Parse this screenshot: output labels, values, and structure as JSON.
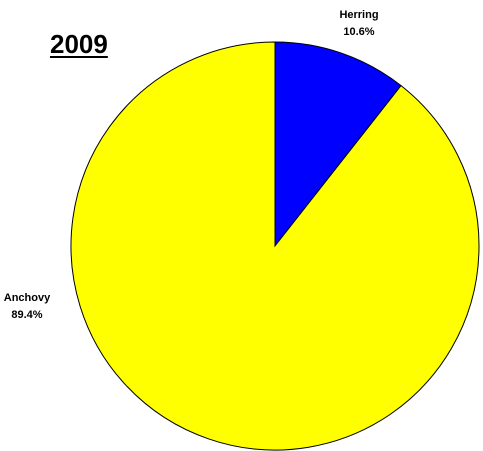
{
  "chart_data": {
    "type": "pie",
    "title": "2009",
    "slices": [
      {
        "label": "Herring",
        "value_label": "10.6%",
        "value": 10.6,
        "color": "#0000FF"
      },
      {
        "label": "Anchovy",
        "value_label": "89.4%",
        "value": 89.4,
        "color": "#FFFF00"
      }
    ],
    "start_angle": "12 o'clock",
    "direction": "clockwise",
    "slice_outline_color": "#000000",
    "legend": "none"
  }
}
